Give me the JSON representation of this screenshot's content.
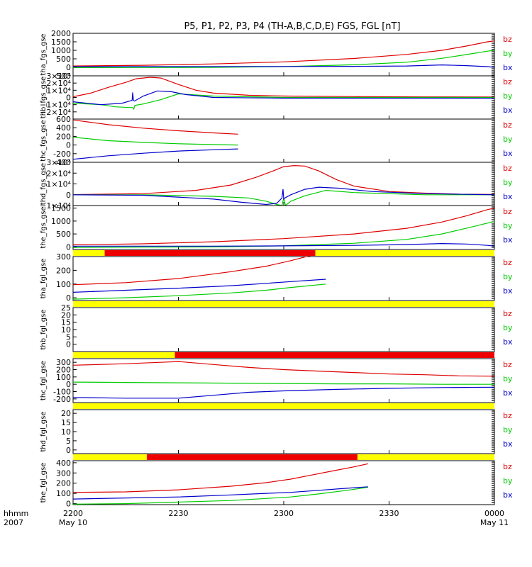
{
  "title": "P5, P1, P2, P3, P4 (TH-A,B,C,D,E) FGS, FGL [nT]",
  "time_axis": {
    "unit_labels": [
      "hhmm",
      "2007"
    ],
    "ticks": [
      {
        "t": 0,
        "label": "2200",
        "sub": "May 10"
      },
      {
        "t": 30,
        "label": "2230",
        "sub": ""
      },
      {
        "t": 60,
        "label": "2300",
        "sub": ""
      },
      {
        "t": 90,
        "label": "2330",
        "sub": ""
      },
      {
        "t": 120,
        "label": "0000",
        "sub": "May 11"
      }
    ],
    "range_minutes": [
      0,
      120
    ]
  },
  "legend": [
    {
      "name": "bz",
      "color": "#dd0000"
    },
    {
      "name": "by",
      "color": "#00cc00"
    },
    {
      "name": "bx",
      "color": "#0000cc"
    }
  ],
  "colors": {
    "red": "#dd0000",
    "green": "#00cc00",
    "blue": "#0000cc",
    "yellow": "#ffff00",
    "bar_red": "#ee0000"
  },
  "chart_data": [
    {
      "type": "line",
      "ylabel": "tha_fgs_gse",
      "ylim": [
        -500,
        2000
      ],
      "yticks": [
        {
          "v": 2000,
          "l": "2000"
        },
        {
          "v": 1500,
          "l": "1500"
        },
        {
          "v": 1000,
          "l": "1000"
        },
        {
          "v": 500,
          "l": "500"
        },
        {
          "v": 0,
          "l": "0"
        },
        {
          "v": -500,
          "l": "-500"
        }
      ],
      "series": [
        {
          "name": "bz",
          "t": [
            0,
            20,
            40,
            60,
            80,
            95,
            105,
            112,
            118,
            120
          ],
          "values": [
            80,
            120,
            200,
            320,
            520,
            760,
            1000,
            1250,
            1500,
            1560
          ]
        },
        {
          "name": "by",
          "t": [
            0,
            20,
            40,
            60,
            80,
            95,
            105,
            112,
            118,
            120
          ],
          "values": [
            -20,
            -10,
            0,
            40,
            150,
            300,
            530,
            750,
            950,
            1000
          ]
        },
        {
          "name": "bx",
          "t": [
            0,
            20,
            40,
            60,
            80,
            95,
            105,
            112,
            118,
            120
          ],
          "values": [
            40,
            40,
            40,
            50,
            60,
            80,
            140,
            100,
            40,
            0
          ]
        }
      ]
    },
    {
      "type": "line",
      "ylabel": "thb_fgs_gse",
      "ylim": [
        -30000,
        30000
      ],
      "yticks": [
        {
          "v": 30000,
          "l": "3×10⁴"
        },
        {
          "v": 20000,
          "l": "2×10⁴"
        },
        {
          "v": 10000,
          "l": "1×10⁴"
        },
        {
          "v": 0,
          "l": "0"
        },
        {
          "v": -10000,
          "l": "−1×10⁴"
        },
        {
          "v": -20000,
          "l": "−2×10⁴"
        }
      ],
      "series": [
        {
          "name": "bz",
          "t": [
            0,
            5,
            10,
            15,
            18,
            22,
            25,
            30,
            35,
            40,
            50,
            60,
            80,
            100,
            120
          ],
          "values": [
            1000,
            6000,
            14000,
            21000,
            26000,
            28000,
            27000,
            18000,
            10000,
            6000,
            3000,
            2000,
            1200,
            800,
            700
          ]
        },
        {
          "name": "by",
          "t": [
            0,
            8,
            12,
            16,
            17,
            17.3,
            17.6,
            20,
            25,
            30,
            40,
            60,
            80,
            120
          ],
          "values": [
            -8000,
            -10000,
            -13000,
            -14000,
            -14000,
            -16000,
            -11000,
            -9000,
            -3000,
            5000,
            2000,
            0,
            0,
            0
          ]
        },
        {
          "name": "bx",
          "t": [
            0,
            8,
            14,
            16.8,
            17,
            17.2,
            17.5,
            20,
            24,
            28,
            32,
            40,
            60,
            120
          ],
          "values": [
            -6000,
            -10000,
            -8000,
            -4000,
            7000,
            -4000,
            -5000,
            2000,
            9000,
            8000,
            4000,
            0,
            -1000,
            -1000
          ]
        }
      ]
    },
    {
      "type": "line",
      "ylabel": "thc_fgs_gse",
      "ylim": [
        -400,
        600
      ],
      "yticks": [
        {
          "v": 600,
          "l": "600"
        },
        {
          "v": 400,
          "l": "400"
        },
        {
          "v": 200,
          "l": "200"
        },
        {
          "v": 0,
          "l": "0"
        },
        {
          "v": -200,
          "l": "-200"
        },
        {
          "v": -400,
          "l": "-400"
        }
      ],
      "series": [
        {
          "name": "bz",
          "t": [
            0,
            10,
            20,
            30,
            40,
            47
          ],
          "values": [
            580,
            470,
            390,
            330,
            280,
            250
          ]
        },
        {
          "name": "by",
          "t": [
            0,
            10,
            20,
            30,
            40,
            47
          ],
          "values": [
            180,
            100,
            60,
            30,
            10,
            0
          ]
        },
        {
          "name": "bx",
          "t": [
            0,
            10,
            20,
            30,
            40,
            47
          ],
          "values": [
            -330,
            -250,
            -190,
            -140,
            -110,
            -90
          ]
        }
      ]
    },
    {
      "type": "line",
      "ylabel": "thd_fgs_gse",
      "ylim": [
        -10000,
        30000
      ],
      "yticks": [
        {
          "v": 30000,
          "l": "3×10⁴"
        },
        {
          "v": 20000,
          "l": "2×10⁴"
        },
        {
          "v": 10000,
          "l": "1×10⁴"
        },
        {
          "v": 0,
          "l": "0"
        },
        {
          "v": -10000,
          "l": "−1×10⁴"
        }
      ],
      "series": [
        {
          "name": "bz",
          "t": [
            0,
            20,
            35,
            45,
            52,
            57,
            60,
            63,
            66,
            70,
            75,
            80,
            90,
            100,
            110,
            120
          ],
          "values": [
            100,
            1000,
            4000,
            9000,
            16000,
            22000,
            26000,
            27000,
            26500,
            22000,
            14000,
            8000,
            3000,
            1500,
            500,
            200
          ]
        },
        {
          "name": "by",
          "t": [
            0,
            20,
            40,
            50,
            55,
            58,
            59.5,
            60,
            60.5,
            62,
            66,
            72,
            80,
            100,
            120
          ],
          "values": [
            0,
            0,
            -1500,
            -3000,
            -6000,
            -9000,
            -10000,
            -3000,
            -10000,
            -6000,
            -1000,
            4000,
            2000,
            0,
            0
          ]
        },
        {
          "name": "bx",
          "t": [
            0,
            20,
            40,
            48,
            55,
            58,
            59.5,
            59.8,
            60,
            60.3,
            62,
            66,
            70,
            76,
            85,
            100,
            120
          ],
          "values": [
            0,
            -500,
            -4000,
            -7000,
            -9000,
            -8000,
            -3000,
            5000,
            -4000,
            -3000,
            0,
            5000,
            7000,
            6000,
            3000,
            1000,
            0
          ]
        }
      ]
    },
    {
      "type": "line",
      "ylabel": "the_fgs_gse",
      "ylim": [
        -100,
        1600
      ],
      "yticks": [
        {
          "v": 1500,
          "l": "1500"
        },
        {
          "v": 1000,
          "l": "1000"
        },
        {
          "v": 500,
          "l": "500"
        },
        {
          "v": 0,
          "l": "0"
        }
      ],
      "series": [
        {
          "name": "bz",
          "t": [
            0,
            20,
            40,
            60,
            80,
            95,
            105,
            112,
            118,
            120
          ],
          "values": [
            80,
            120,
            200,
            320,
            500,
            720,
            960,
            1200,
            1440,
            1500
          ]
        },
        {
          "name": "by",
          "t": [
            0,
            20,
            40,
            60,
            80,
            95,
            105,
            112,
            118,
            120
          ],
          "values": [
            -20,
            -10,
            0,
            40,
            140,
            290,
            500,
            720,
            920,
            980
          ]
        },
        {
          "name": "bx",
          "t": [
            0,
            20,
            40,
            60,
            80,
            95,
            105,
            112,
            118,
            120
          ],
          "values": [
            30,
            30,
            30,
            40,
            60,
            90,
            130,
            110,
            60,
            30
          ]
        }
      ]
    },
    {
      "type": "line",
      "ylabel": "tha_fgl_gse",
      "ylim": [
        -20,
        300
      ],
      "yticks": [
        {
          "v": 300,
          "l": "300"
        },
        {
          "v": 200,
          "l": "200"
        },
        {
          "v": 100,
          "l": "100"
        },
        {
          "v": 0,
          "l": "0"
        }
      ],
      "series": [
        {
          "name": "bz",
          "t": [
            0,
            15,
            30,
            45,
            55,
            62,
            68
          ],
          "values": [
            95,
            110,
            140,
            190,
            230,
            270,
            310
          ]
        },
        {
          "name": "by",
          "t": [
            0,
            15,
            30,
            45,
            55,
            62,
            72
          ],
          "values": [
            -10,
            0,
            15,
            35,
            55,
            75,
            100
          ]
        },
        {
          "name": "bx",
          "t": [
            0,
            15,
            30,
            45,
            55,
            62,
            72
          ],
          "values": [
            40,
            55,
            70,
            88,
            105,
            118,
            135
          ]
        }
      ]
    },
    {
      "type": "line",
      "ylabel": "thb_fgl_gse",
      "ylim": [
        -5,
        25
      ],
      "yticks": [
        {
          "v": 25,
          "l": "25"
        },
        {
          "v": 20,
          "l": "20"
        },
        {
          "v": 15,
          "l": "15"
        },
        {
          "v": 10,
          "l": "10"
        },
        {
          "v": 5,
          "l": "5"
        },
        {
          "v": 0,
          "l": "0"
        }
      ],
      "series": []
    },
    {
      "type": "line",
      "ylabel": "thc_fgl_gse",
      "ylim": [
        -250,
        350
      ],
      "yticks": [
        {
          "v": 300,
          "l": "300"
        },
        {
          "v": 200,
          "l": "200"
        },
        {
          "v": 100,
          "l": "100"
        },
        {
          "v": 0,
          "l": "0"
        },
        {
          "v": -100,
          "l": "-100"
        },
        {
          "v": -200,
          "l": "-200"
        }
      ],
      "series": [
        {
          "name": "bz",
          "t": [
            0,
            15,
            25,
            30,
            40,
            50,
            60,
            70,
            80,
            90,
            100,
            110,
            120
          ],
          "values": [
            260,
            280,
            300,
            310,
            270,
            230,
            200,
            180,
            160,
            140,
            130,
            115,
            110
          ]
        },
        {
          "name": "by",
          "t": [
            0,
            15,
            30,
            45,
            60,
            75,
            90,
            105,
            120
          ],
          "values": [
            30,
            25,
            20,
            15,
            10,
            5,
            5,
            0,
            0
          ]
        },
        {
          "name": "bx",
          "t": [
            0,
            15,
            30,
            40,
            50,
            60,
            75,
            90,
            105,
            120
          ],
          "values": [
            -180,
            -190,
            -190,
            -150,
            -110,
            -90,
            -70,
            -55,
            -45,
            -40
          ]
        }
      ]
    },
    {
      "type": "line",
      "ylabel": "thd_fgl_gse",
      "ylim": [
        -2,
        22
      ],
      "yticks": [
        {
          "v": 20,
          "l": "20"
        },
        {
          "v": 15,
          "l": "15"
        },
        {
          "v": 10,
          "l": "10"
        },
        {
          "v": 5,
          "l": "5"
        },
        {
          "v": 0,
          "l": "0"
        }
      ],
      "series": []
    },
    {
      "type": "line",
      "ylabel": "the_fgl_gse",
      "ylim": [
        -10,
        420
      ],
      "yticks": [
        {
          "v": 400,
          "l": "400"
        },
        {
          "v": 300,
          "l": "300"
        },
        {
          "v": 200,
          "l": "200"
        },
        {
          "v": 100,
          "l": "100"
        },
        {
          "v": 0,
          "l": "0"
        }
      ],
      "series": [
        {
          "name": "bz",
          "t": [
            0,
            15,
            30,
            45,
            55,
            62,
            68,
            74,
            80,
            84
          ],
          "values": [
            110,
            115,
            135,
            170,
            205,
            240,
            280,
            320,
            360,
            390
          ]
        },
        {
          "name": "by",
          "t": [
            0,
            15,
            30,
            45,
            55,
            62,
            70,
            78,
            84
          ],
          "values": [
            -5,
            0,
            15,
            30,
            50,
            65,
            95,
            130,
            160
          ]
        },
        {
          "name": "bx",
          "t": [
            0,
            15,
            30,
            45,
            55,
            62,
            70,
            78,
            84
          ],
          "values": [
            45,
            55,
            65,
            85,
            100,
            110,
            130,
            150,
            165
          ]
        }
      ]
    }
  ],
  "status_bars": [
    {
      "segments": [
        {
          "c": "yellow",
          "t0": 0,
          "t1": 9
        },
        {
          "c": "red",
          "t0": 9,
          "t1": 69
        },
        {
          "c": "yellow",
          "t0": 69,
          "t1": 120
        }
      ]
    },
    {
      "segments": [
        {
          "c": "yellow",
          "t0": 0,
          "t1": 120
        }
      ]
    },
    {
      "segments": [
        {
          "c": "yellow",
          "t0": 0,
          "t1": 29
        },
        {
          "c": "red",
          "t0": 29,
          "t1": 120
        }
      ]
    },
    {
      "segments": [
        {
          "c": "yellow",
          "t0": 0,
          "t1": 120
        }
      ]
    },
    {
      "segments": [
        {
          "c": "yellow",
          "t0": 0,
          "t1": 21
        },
        {
          "c": "red",
          "t0": 21,
          "t1": 81
        },
        {
          "c": "yellow",
          "t0": 81,
          "t1": 120
        }
      ]
    }
  ]
}
